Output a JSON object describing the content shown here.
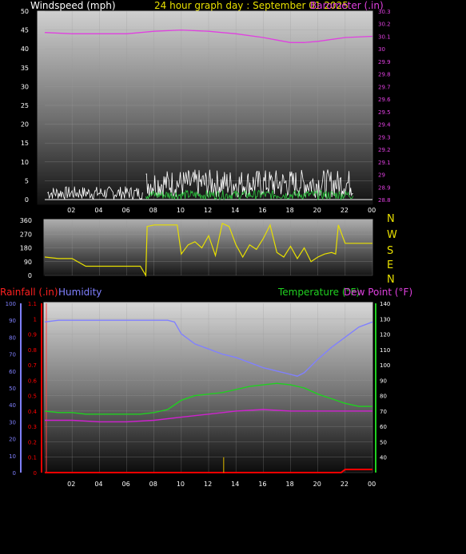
{
  "header": {
    "windspeed_title": "Windspeed (mph)",
    "graph_title": "24 hour graph day : September 01 2025",
    "barometer_title": "Barometer (.in)"
  },
  "lower_header": {
    "rainfall_title": "Rainfall (.in)",
    "humidity_title": "Humidity",
    "temperature_title": "Temperature (°F)",
    "dewpoint_title": "Dew Point (°F)"
  },
  "compass": {
    "labels": [
      "N",
      "W",
      "S",
      "E",
      "N"
    ]
  },
  "colors": {
    "windspeed": "#ffffff",
    "gust": "#c8c8c8",
    "wind_avg": "#2ecc40",
    "barometer": "#e040e0",
    "wind_direction": "#e8e000",
    "humidity": "#8080ff",
    "temperature": "#20d020",
    "dewpoint": "#d020d0",
    "rainfall": "#ff0000",
    "rain_rate": "#c0a000"
  },
  "chart_data": [
    {
      "type": "line",
      "name": "wind-barometer",
      "x_ticks": [
        "02",
        "04",
        "06",
        "08",
        "10",
        "12",
        "14",
        "16",
        "18",
        "20",
        "22",
        "00"
      ],
      "left_axis": {
        "label": "Windspeed (mph)",
        "ticks": [
          "0",
          "5",
          "10",
          "15",
          "20",
          "25",
          "30",
          "35",
          "40",
          "45",
          "50"
        ],
        "ylim": [
          0,
          50
        ]
      },
      "right_axis": {
        "label": "Barometer (.in)",
        "ticks": [
          "28.8",
          "28.9",
          "29",
          "29.1",
          "29.2",
          "29.3",
          "29.4",
          "29.5",
          "29.6",
          "29.7",
          "29.8",
          "29.9",
          "30",
          "30.1",
          "30.2",
          "30.3"
        ],
        "ylim": [
          28.8,
          30.3
        ]
      },
      "series": [
        {
          "name": "Barometer (.in)",
          "axis": "right",
          "x": [
            0,
            2,
            4,
            6,
            8,
            10,
            12,
            14,
            16,
            17,
            18,
            19,
            20,
            22,
            24
          ],
          "values": [
            30.13,
            30.12,
            30.12,
            30.12,
            30.14,
            30.15,
            30.14,
            30.12,
            30.09,
            30.07,
            30.05,
            30.05,
            30.06,
            30.09,
            30.1
          ]
        }
      ]
    },
    {
      "type": "line",
      "name": "wind-direction",
      "x_ticks": [
        "02",
        "04",
        "06",
        "08",
        "10",
        "12",
        "14",
        "16",
        "18",
        "20",
        "22",
        "00"
      ],
      "left_axis": {
        "ticks": [
          "0",
          "90",
          "180",
          "270",
          "360"
        ],
        "ylim": [
          0,
          360
        ]
      },
      "series": [
        {
          "name": "Wind Direction",
          "x": [
            0,
            1,
            2,
            3,
            4,
            5,
            6,
            7,
            7.4,
            7.5,
            8,
            9,
            9.7,
            10,
            10.5,
            11,
            11.5,
            12,
            12.5,
            13,
            13.5,
            14,
            14.5,
            15,
            15.5,
            16,
            16.5,
            17,
            17.5,
            18,
            18.5,
            19,
            19.5,
            20,
            20.5,
            21,
            21.3,
            21.5,
            22,
            23,
            24
          ],
          "values": [
            120,
            110,
            110,
            60,
            60,
            60,
            60,
            60,
            0,
            320,
            330,
            330,
            330,
            140,
            200,
            220,
            180,
            260,
            130,
            340,
            320,
            200,
            120,
            200,
            170,
            240,
            330,
            150,
            120,
            190,
            110,
            180,
            90,
            120,
            140,
            150,
            140,
            330,
            210,
            210,
            210
          ]
        }
      ]
    },
    {
      "type": "line",
      "name": "temperature-humidity-rain",
      "x_ticks": [
        "02",
        "04",
        "06",
        "08",
        "10",
        "12",
        "14",
        "16",
        "18",
        "20",
        "22",
        "00"
      ],
      "humidity_axis": {
        "label": "Humidity",
        "ticks": [
          "0",
          "10",
          "20",
          "30",
          "40",
          "50",
          "60",
          "70",
          "80",
          "90",
          "100"
        ],
        "ylim": [
          0,
          100
        ]
      },
      "rain_axis": {
        "label": "Rainfall (.in)",
        "ticks": [
          "0",
          "0.1",
          "0.2",
          "0.3",
          "0.4",
          "0.5",
          "0.6",
          "0.7",
          "0.8",
          "0.9",
          "1",
          "1.1"
        ],
        "ylim": [
          0,
          1.1
        ]
      },
      "temp_axis": {
        "label": "Temperature (°F)",
        "ticks": [
          "40",
          "50",
          "60",
          "70",
          "80",
          "90",
          "100",
          "110",
          "120",
          "130",
          "140"
        ],
        "ylim": [
          30,
          140
        ]
      },
      "series": [
        {
          "name": "Humidity",
          "axis": "humidity",
          "x": [
            0,
            1,
            2,
            3,
            4,
            5,
            6,
            7,
            8,
            9,
            9.5,
            10,
            11,
            12,
            13,
            14,
            15,
            16,
            17,
            18,
            18.5,
            19,
            20,
            21,
            22,
            23,
            24
          ],
          "values": [
            89,
            90,
            90,
            90,
            90,
            90,
            90,
            90,
            90,
            90,
            89,
            82,
            76,
            73,
            70,
            68,
            65,
            62,
            60,
            58,
            57,
            59,
            67,
            74,
            80,
            86,
            89
          ]
        },
        {
          "name": "Temperature (°F)",
          "axis": "temp",
          "x": [
            0,
            1,
            2,
            3,
            4,
            5,
            6,
            7,
            8,
            9,
            10,
            11,
            12,
            13,
            14,
            15,
            16,
            17,
            18,
            19,
            20,
            21,
            22,
            23,
            24
          ],
          "values": [
            70,
            69,
            69,
            68,
            68,
            68,
            68,
            68,
            69,
            71,
            77,
            80,
            81,
            82,
            84,
            86,
            87,
            88,
            87,
            85,
            81,
            78,
            75,
            73,
            73
          ]
        },
        {
          "name": "Dew Point (°F)",
          "axis": "temp",
          "x": [
            0,
            2,
            4,
            6,
            8,
            10,
            12,
            14,
            16,
            18,
            20,
            22,
            24
          ],
          "values": [
            64,
            64,
            63,
            63,
            64,
            66,
            68,
            70,
            71,
            70,
            70,
            70,
            70
          ]
        },
        {
          "name": "Rainfall (.in)",
          "axis": "rain",
          "x": [
            0,
            21.7,
            22,
            24
          ],
          "values": [
            0,
            0,
            0.02,
            0.02
          ]
        }
      ]
    }
  ]
}
